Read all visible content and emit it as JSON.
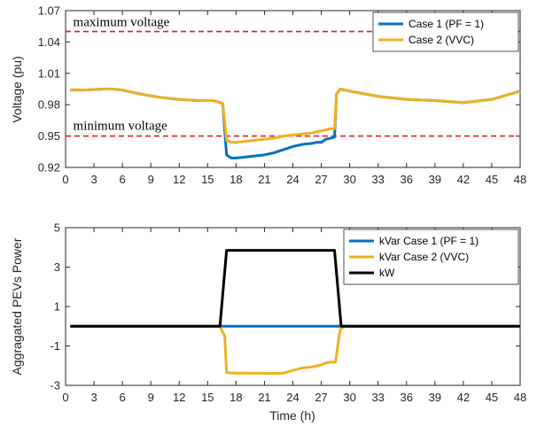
{
  "colors": {
    "case1": "#0072bd",
    "case2": "#edb120",
    "kw": "#000000",
    "limit": "#e31a1c",
    "axis": "#262626"
  },
  "chart_data": [
    {
      "type": "line",
      "title": "",
      "xlabel": "",
      "ylabel": "Voltage (pu)",
      "xlim": [
        0,
        48
      ],
      "ylim": [
        0.92,
        1.07
      ],
      "xticks": [
        "0",
        "3",
        "6",
        "9",
        "12",
        "15",
        "18",
        "21",
        "24",
        "27",
        "30",
        "33",
        "36",
        "39",
        "42",
        "45",
        "48"
      ],
      "yticks": [
        "0.92",
        "0.95",
        "0.98",
        "1.01",
        "1.04",
        "1.07"
      ],
      "grid": false,
      "legend_position": "top-right",
      "annotations": [
        {
          "text": "maximum voltage",
          "x": 0.8,
          "y": 1.055
        },
        {
          "text": "minimum voltage",
          "x": 0.8,
          "y": 0.956
        }
      ],
      "reference_lines": [
        {
          "name": "maximum voltage",
          "y": 1.05
        },
        {
          "name": "minimum voltage",
          "y": 0.95
        }
      ],
      "series": [
        {
          "name": "Case 1 (PF = 1)",
          "x": [
            0.5,
            2,
            4,
            5,
            6,
            8,
            10,
            12,
            14,
            15.5,
            16,
            16.6,
            17,
            17.5,
            18,
            19,
            20,
            21,
            22,
            23,
            24,
            25,
            26,
            26.5,
            27,
            27.5,
            28,
            28.4,
            28.6,
            29,
            30,
            33,
            36,
            39,
            42,
            45,
            48
          ],
          "y": [
            0.994,
            0.994,
            0.995,
            0.995,
            0.994,
            0.99,
            0.987,
            0.985,
            0.984,
            0.984,
            0.983,
            0.981,
            0.932,
            0.929,
            0.929,
            0.93,
            0.931,
            0.932,
            0.934,
            0.937,
            0.94,
            0.942,
            0.943,
            0.944,
            0.944,
            0.947,
            0.948,
            0.949,
            0.99,
            0.995,
            0.993,
            0.988,
            0.985,
            0.984,
            0.982,
            0.985,
            0.993
          ]
        },
        {
          "name": "Case 2 (VVC)",
          "x": [
            0.5,
            2,
            4,
            5,
            6,
            8,
            10,
            12,
            14,
            15.5,
            16,
            16.6,
            17,
            17.5,
            18,
            19,
            20,
            21,
            22,
            23,
            24,
            25,
            26,
            26.5,
            27,
            27.5,
            28,
            28.4,
            28.6,
            29,
            30,
            33,
            36,
            39,
            42,
            45,
            48
          ],
          "y": [
            0.994,
            0.994,
            0.995,
            0.995,
            0.994,
            0.99,
            0.987,
            0.985,
            0.984,
            0.984,
            0.983,
            0.981,
            0.946,
            0.944,
            0.944,
            0.945,
            0.946,
            0.947,
            0.948,
            0.95,
            0.951,
            0.952,
            0.953,
            0.954,
            0.955,
            0.956,
            0.957,
            0.957,
            0.99,
            0.995,
            0.993,
            0.988,
            0.985,
            0.984,
            0.982,
            0.985,
            0.993
          ]
        }
      ]
    },
    {
      "type": "line",
      "title": "",
      "xlabel": "Time (h)",
      "ylabel": "Aggragated PEVs Power",
      "xlim": [
        0,
        48
      ],
      "ylim": [
        -3,
        5
      ],
      "xticks": [
        "0",
        "3",
        "6",
        "9",
        "12",
        "15",
        "18",
        "21",
        "24",
        "27",
        "30",
        "33",
        "36",
        "39",
        "42",
        "45",
        "48"
      ],
      "yticks": [
        "-3",
        "-1",
        "1",
        "3",
        "5"
      ],
      "grid": false,
      "legend_position": "top-right",
      "series": [
        {
          "name": "kVar Case 1 (PF = 1)",
          "x": [
            0.5,
            48
          ],
          "y": [
            0,
            0
          ]
        },
        {
          "name": "kVar Case 2 (VVC)",
          "x": [
            0.5,
            16.3,
            16.8,
            17,
            18,
            19,
            20,
            21,
            22,
            23,
            24,
            25,
            26,
            27,
            27.5,
            28,
            28.5,
            29,
            29.5,
            48
          ],
          "y": [
            0,
            0,
            -0.5,
            -2.35,
            -2.38,
            -2.38,
            -2.39,
            -2.39,
            -2.4,
            -2.38,
            -2.24,
            -2.12,
            -2.07,
            -1.96,
            -1.86,
            -1.82,
            -1.82,
            -0.15,
            0,
            0
          ]
        },
        {
          "name": "kW",
          "x": [
            0.5,
            16.3,
            17,
            28.4,
            29.1,
            48
          ],
          "y": [
            0,
            0,
            3.85,
            3.85,
            0,
            0
          ]
        }
      ]
    }
  ]
}
